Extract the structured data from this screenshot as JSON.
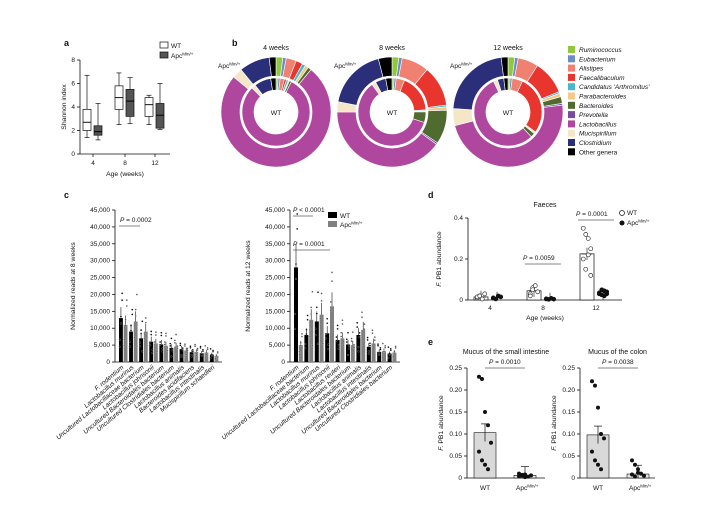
{
  "panel_labels": {
    "a": "a",
    "b": "b",
    "c": "c",
    "d": "d",
    "e": "e"
  },
  "colors": {
    "Ruminococcus": "#8fc73e",
    "Eubacterium": "#6b8cc7",
    "Alistipes": "#f08070",
    "Faecalibaculum": "#e8352e",
    "Candidatus 'Arthromitus'": "#49b6c9",
    "Parabacteroides": "#f4c98a",
    "Bacteroides": "#4f6b2f",
    "Prevotella": "#7b4a9e",
    "Lactobacillus": "#b0479e",
    "Mucispirillum": "#f5e6c8",
    "Clostridium": "#2b2f7a",
    "Other genera": "#000000",
    "WT": "#ffffff",
    "Apc": "#555555"
  },
  "chart_data": [
    {
      "id": "a",
      "type": "box",
      "title": "",
      "xlabel": "Age (weeks)",
      "ylabel": "Shannon index",
      "categories": [
        "4",
        "8",
        "12"
      ],
      "ylim": [
        0,
        8
      ],
      "yticks": [
        "0",
        "2",
        "4",
        "6",
        "8"
      ],
      "legend": [
        "WT",
        "Apc"
      ],
      "legend_sup": "Min/+",
      "series": [
        {
          "name": "WT",
          "boxes": [
            [
              1.4,
              2,
              2.7,
              3.8,
              6.7
            ],
            [
              2.5,
              3.8,
              4.8,
              5.8,
              6.9
            ],
            [
              2.5,
              3.2,
              4.2,
              4.8,
              5
            ]
          ]
        },
        {
          "name": "Apc",
          "boxes": [
            [
              1.2,
              1.6,
              1.9,
              2.4,
              4.3
            ],
            [
              2.6,
              3.2,
              4.5,
              5.5,
              6.5
            ],
            [
              2.1,
              2.2,
              3.3,
              4.3,
              6
            ]
          ]
        }
      ]
    },
    {
      "id": "b",
      "type": "pie",
      "title": "",
      "categories": [
        "4 weeks",
        "8 weeks",
        "12 weeks"
      ],
      "center_label": "WT",
      "outer_label": "Apc",
      "outer_sup": "Min/+",
      "genera": [
        "Ruminococcus",
        "Eubacterium",
        "Alistipes",
        "Faecalibaculum",
        "Candidatus 'Arthromitus'",
        "Parabacteroides",
        "Bacteroides",
        "Prevotella",
        "Lactobacillus",
        "Mucispirillum",
        "Clostridium",
        "Other genera"
      ],
      "inner": [
        [
          1,
          1,
          2,
          1,
          1,
          0.5,
          1,
          0,
          80,
          2,
          8,
          2.5
        ],
        [
          1,
          1,
          4,
          18,
          0.5,
          0.5,
          5,
          0,
          60,
          2,
          5,
          3
        ],
        [
          1,
          1,
          5,
          28,
          0.5,
          0.5,
          2,
          0,
          55,
          2,
          3,
          2
        ]
      ],
      "outer": [
        [
          2,
          1,
          3,
          2,
          1,
          1,
          1,
          0,
          75,
          3,
          9,
          2
        ],
        [
          2,
          1,
          8,
          12,
          0.5,
          1,
          10,
          0.5,
          40,
          3,
          18,
          4
        ],
        [
          2,
          1,
          6,
          10,
          0.5,
          1,
          2,
          0.5,
          48,
          5,
          22,
          2
        ]
      ]
    },
    {
      "id": "c1",
      "type": "bar",
      "title": "",
      "ylabel": "Normalized reads at 8 weeks",
      "ylim": [
        0,
        45000
      ],
      "yticks": [
        "0",
        "5,000",
        "10,000",
        "15,000",
        "20,000",
        "25,000",
        "30,000",
        "35,000",
        "40,000",
        "45,000"
      ],
      "categories": [
        "F. rodentium",
        "Lactobacillus murinus",
        "Uncultured Lactobacillaceae bacterium",
        "Lactobacillus johnsonii",
        "Uncultured Bacteroidales bacterium",
        "Uncultured Clostridiales bacterium",
        "Lactobacillus animalis",
        "Bacteroides acidifaciens",
        "Lactobacillus intestinalis",
        "Mucispirillum schaedleri"
      ],
      "series": [
        {
          "name": "WT",
          "values": [
            13000,
            9000,
            7000,
            6000,
            5200,
            4200,
            3800,
            2900,
            2600,
            2200
          ]
        },
        {
          "name": "Apc",
          "values": [
            11000,
            12000,
            9000,
            5500,
            4800,
            4600,
            3400,
            3000,
            2800,
            1800
          ]
        }
      ],
      "annotation": "P = 0.0002"
    },
    {
      "id": "c2",
      "type": "bar",
      "title": "",
      "ylabel": "Normalized reads at 12 weeks",
      "ylim": [
        0,
        45000
      ],
      "yticks": [
        "0",
        "5,000",
        "10,000",
        "15,000",
        "20,000",
        "25,000",
        "30,000",
        "35,000",
        "40,000",
        "45,000"
      ],
      "legend": [
        "WT",
        "Apc"
      ],
      "legend_sup": "Min/+",
      "categories": [
        "F. rodentium",
        "Uncultured Lactobacillaceae bacterium",
        "Lactobacillus murinus",
        "Lactobacillus johnsonii",
        "Lactobacillus reuteri",
        "Uncultured Bacteroidales bacterium",
        "Lactobacillus animalis",
        "Lactobacillus intestinalis",
        "Uncultured Bacteroidales bacterium",
        "Uncultured Clostridiales bacterium"
      ],
      "series": [
        {
          "name": "WT",
          "values": [
            28000,
            8000,
            12000,
            8500,
            6500,
            5200,
            8000,
            4500,
            3000,
            2500
          ]
        },
        {
          "name": "Apc",
          "values": [
            5000,
            12500,
            14000,
            16500,
            7000,
            5000,
            9500,
            5500,
            3200,
            2800
          ]
        }
      ],
      "annotations": [
        "P < 0.0001",
        "P = 0.0001"
      ]
    },
    {
      "id": "d",
      "type": "scatter",
      "title": "Faeces",
      "xlabel": "Age (weeks)",
      "ylabel": "F. PB1 abundance",
      "ylabel_italic": "F.",
      "ylabel_rest": " PB1 abundance",
      "categories": [
        "4",
        "8",
        "12"
      ],
      "ylim": [
        0,
        0.4
      ],
      "yticks": [
        "0",
        "0.2",
        "0.4"
      ],
      "legend": [
        "WT",
        "Apc"
      ],
      "legend_sup": "Min/+",
      "series": [
        {
          "name": "WT",
          "means": [
            0.015,
            0.045,
            0.225
          ],
          "points": [
            [
              0.01,
              0.02,
              0.005,
              0.03,
              0.015,
              0.02
            ],
            [
              0.03,
              0.06,
              0.07,
              0.04,
              0.02,
              0.05
            ],
            [
              0.35,
              0.32,
              0.3,
              0.25,
              0.2,
              0.15,
              0.22,
              0.12
            ]
          ]
        },
        {
          "name": "Apc",
          "means": [
            0.01,
            0.005,
            0.03
          ],
          "points": [
            [
              0.01,
              0.005,
              0.02,
              0.015,
              0.01
            ],
            [
              0.005,
              0.003,
              0.008,
              0.004,
              0.006
            ],
            [
              0.03,
              0.05,
              0.02,
              0.04,
              0.035,
              0.025,
              0.045,
              0.03
            ]
          ]
        }
      ],
      "annotations": [
        "P = 0.0059",
        "P = 0.0001"
      ]
    },
    {
      "id": "e1",
      "type": "bar",
      "title": "Mucus of the small intestine",
      "ylabel": "F. PB1 abundance",
      "ylabel_italic": "F.",
      "ylabel_rest": " PB1 abundance",
      "categories": [
        "WT",
        "Apc"
      ],
      "category_sup": "Min/+",
      "ylim": [
        0,
        0.25
      ],
      "yticks": [
        "0",
        "0.05",
        "0.10",
        "0.15",
        "0.20",
        "0.25"
      ],
      "values": [
        0.103,
        0.006
      ],
      "points": [
        [
          0.23,
          0.225,
          0.15,
          0.12,
          0.08,
          0.06,
          0.04,
          0.03,
          0.02
        ],
        [
          0.01,
          0.005,
          0.008,
          0.003,
          0.006,
          0.004,
          0.007,
          0.002
        ]
      ],
      "annotation": "P = 0.0010"
    },
    {
      "id": "e2",
      "type": "bar",
      "title": "Mucus of the colon",
      "ylabel": "F. PB1 abundance",
      "ylabel_italic": "F.",
      "ylabel_rest": " PB1 abundance",
      "categories": [
        "WT",
        "Apc"
      ],
      "category_sup": "Min/+",
      "ylim": [
        0,
        0.25
      ],
      "yticks": [
        "0",
        "0.05",
        "0.10",
        "0.15",
        "0.20",
        "0.25"
      ],
      "values": [
        0.098,
        0.009
      ],
      "points": [
        [
          0.22,
          0.21,
          0.16,
          0.1,
          0.09,
          0.06,
          0.04,
          0.03,
          0.02
        ],
        [
          0.04,
          0.03,
          0.02,
          0.01,
          0.005,
          0.008,
          0.003,
          0.012
        ]
      ],
      "annotation": "P = 0.0038"
    }
  ]
}
